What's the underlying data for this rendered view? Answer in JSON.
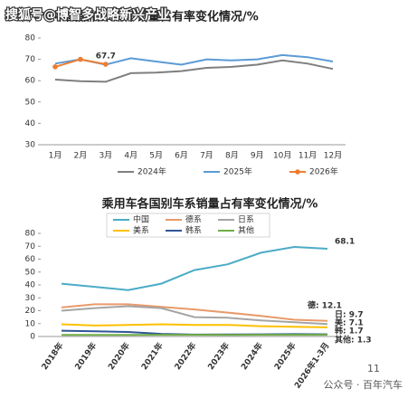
{
  "watermark": "搜狐号@博智多战略新兴产业",
  "footer": {
    "page": "11",
    "source": "公众号 · 百年汽车"
  },
  "chart_data": [
    {
      "type": "line",
      "title": "中国品牌乘用车销量占有率变化情况/%",
      "categories": [
        "1月",
        "2月",
        "3月",
        "4月",
        "5月",
        "6月",
        "7月",
        "8月",
        "9月",
        "10月",
        "11月",
        "12月"
      ],
      "ylim": [
        30,
        80
      ],
      "yticks": [
        30,
        40,
        50,
        60,
        70,
        80
      ],
      "grid": false,
      "legend": "bottom",
      "series": [
        {
          "name": "2024年",
          "color": "#7f7f7f",
          "values": [
            60.5,
            59.8,
            59.5,
            63.5,
            63.8,
            64.5,
            66,
            66.5,
            67.5,
            69.5,
            68,
            65.5
          ]
        },
        {
          "name": "2025年",
          "color": "#5b9bd5",
          "values": [
            68,
            70,
            67.5,
            70.5,
            69,
            67.5,
            70,
            69.5,
            70,
            72,
            71,
            69
          ]
        },
        {
          "name": "2026年",
          "color": "#ed7d31",
          "markers": true,
          "data_labels": true,
          "values": [
            66.5,
            70,
            67.7,
            null,
            null,
            null,
            null,
            null,
            null,
            null,
            null,
            null
          ]
        }
      ]
    },
    {
      "type": "line",
      "title": "乘用车各国别车系销量占有率变化情况/%",
      "categories": [
        "2018年",
        "2019年",
        "2020年",
        "2021年",
        "2022年",
        "2023年",
        "2024年",
        "2025年",
        "2026年1-3月"
      ],
      "ylim": [
        0,
        80
      ],
      "yticks": [
        0,
        10,
        20,
        30,
        40,
        50,
        60,
        70,
        80
      ],
      "grid": false,
      "legend": "top",
      "series": [
        {
          "name": "中国",
          "color": "#4bacc6",
          "data_labels": true,
          "values": [
            41,
            38.5,
            36,
            41,
            51.5,
            56,
            65,
            69.5,
            68.1
          ]
        },
        {
          "name": "德系",
          "color": "#e89a6a",
          "values": [
            22.5,
            25,
            25,
            23,
            21,
            18.5,
            16,
            13,
            12.1
          ],
          "value_labels": [
            null,
            null,
            null,
            null,
            null,
            null,
            null,
            null,
            "德: 12.1"
          ]
        },
        {
          "name": "日系",
          "color": "#a5a5a5",
          "values": [
            20,
            22,
            23.5,
            22,
            15,
            14.5,
            12.5,
            11,
            9.7
          ],
          "value_labels": [
            null,
            null,
            null,
            null,
            null,
            null,
            null,
            null,
            "日: 9.7"
          ]
        },
        {
          "name": "美系",
          "color": "#ffc000",
          "values": [
            9.5,
            8.5,
            9,
            9.5,
            9,
            9,
            8,
            7.5,
            7.1
          ],
          "value_labels": [
            null,
            null,
            null,
            null,
            null,
            null,
            null,
            null,
            "美: 7.1"
          ]
        },
        {
          "name": "韩系",
          "color": "#2f5597",
          "values": [
            4.5,
            4,
            3.5,
            2,
            1.5,
            1.6,
            1.7,
            1.8,
            1.7
          ],
          "value_labels": [
            null,
            null,
            null,
            null,
            null,
            null,
            null,
            null,
            "韩: 1.7"
          ]
        },
        {
          "name": "其他",
          "color": "#70ad47",
          "values": [
            1.2,
            1.2,
            1.2,
            1.3,
            1.3,
            1.2,
            1.3,
            1.3,
            1.3
          ],
          "value_labels": [
            null,
            null,
            null,
            null,
            null,
            null,
            null,
            null,
            "其他: 1.3"
          ]
        }
      ]
    }
  ]
}
